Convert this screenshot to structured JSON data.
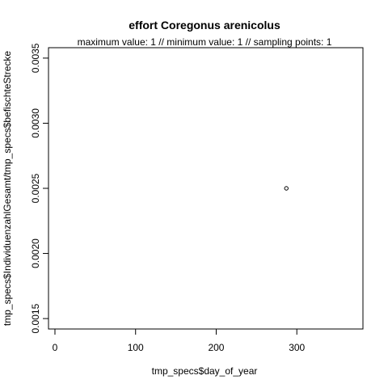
{
  "chart_data": {
    "type": "scatter",
    "title": "effort Coregonus arenicolus",
    "subtitle": "maximum value: 1  //  minimum value: 1  // sampling points: 1",
    "xlabel": "tmp_specs$day_of_year",
    "ylabel": "tmp_specs$IndividuenzahlGesamt/tmp_specs$befischteStrecke",
    "xlim": [
      -8,
      382
    ],
    "ylim": [
      0.00142,
      0.00358
    ],
    "x_ticks": [
      0,
      100,
      200,
      300
    ],
    "x_tick_labels": [
      "0",
      "100",
      "200",
      "300"
    ],
    "y_ticks": [
      0.0015,
      0.002,
      0.0025,
      0.003,
      0.0035
    ],
    "y_tick_labels": [
      "0.0015",
      "0.0020",
      "0.0025",
      "0.0030",
      "0.0035"
    ],
    "points": [
      {
        "x": 287,
        "y": 0.0025
      }
    ],
    "marker": "open-circle",
    "grid": false,
    "legend": "none"
  }
}
